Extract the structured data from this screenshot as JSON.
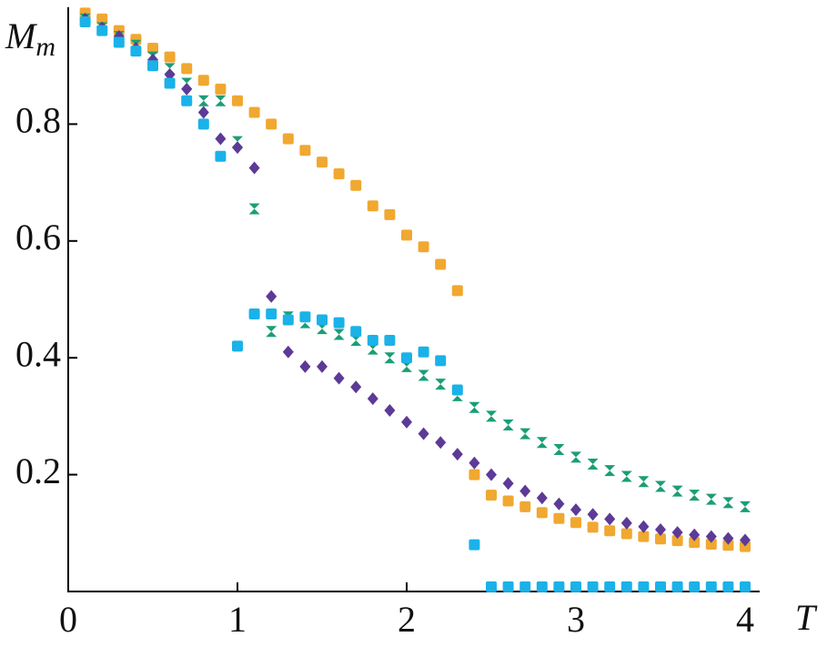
{
  "chart_data": {
    "type": "scatter",
    "xlabel": "T",
    "ylabel": {
      "main": "M",
      "sub": "m"
    },
    "x": [
      0.1,
      0.2,
      0.3,
      0.4,
      0.5,
      0.6,
      0.7,
      0.8,
      0.9,
      1.0,
      1.1,
      1.2,
      1.3,
      1.4,
      1.5,
      1.6,
      1.7,
      1.8,
      1.9,
      2.0,
      2.1,
      2.2,
      2.3,
      2.4,
      2.5,
      2.6,
      2.7,
      2.8,
      2.9,
      3.0,
      3.1,
      3.2,
      3.3,
      3.4,
      3.5,
      3.6,
      3.7,
      3.8,
      3.9,
      4.0
    ],
    "series": [
      {
        "color": "#f0a830",
        "marker": "square",
        "values": [
          0.99,
          0.98,
          0.96,
          0.945,
          0.93,
          0.915,
          0.895,
          0.875,
          0.86,
          0.84,
          0.82,
          0.8,
          0.775,
          0.755,
          0.735,
          0.715,
          0.695,
          0.66,
          0.645,
          0.61,
          0.59,
          0.56,
          0.515,
          0.2,
          0.165,
          0.155,
          0.145,
          0.135,
          0.125,
          0.118,
          0.11,
          0.104,
          0.099,
          0.094,
          0.09,
          0.087,
          0.084,
          0.081,
          0.079,
          0.077
        ]
      },
      {
        "color": "#1a9e77",
        "marker": "cross",
        "values": [
          0.98,
          0.965,
          0.95,
          0.935,
          0.915,
          0.895,
          0.87,
          0.84,
          0.84,
          0.77,
          0.655,
          0.445,
          0.47,
          0.46,
          0.45,
          0.44,
          0.43,
          0.415,
          0.4,
          0.385,
          0.37,
          0.355,
          0.335,
          0.315,
          0.3,
          0.285,
          0.27,
          0.255,
          0.243,
          0.23,
          0.218,
          0.207,
          0.197,
          0.188,
          0.18,
          0.172,
          0.165,
          0.158,
          0.152,
          0.145
        ]
      },
      {
        "color": "#5c3a96",
        "marker": "diamond",
        "values": [
          0.98,
          0.965,
          0.95,
          0.93,
          0.91,
          0.885,
          0.86,
          0.82,
          0.775,
          0.76,
          0.725,
          0.505,
          0.41,
          0.385,
          0.385,
          0.365,
          0.35,
          0.33,
          0.31,
          0.29,
          0.27,
          0.255,
          0.235,
          0.22,
          0.2,
          0.185,
          0.172,
          0.16,
          0.15,
          0.14,
          0.132,
          0.124,
          0.117,
          0.111,
          0.106,
          0.101,
          0.097,
          0.094,
          0.091,
          0.088
        ]
      },
      {
        "color": "#1ab2e8",
        "marker": "square",
        "values": [
          0.975,
          0.96,
          0.94,
          0.925,
          0.9,
          0.87,
          0.84,
          0.8,
          0.745,
          0.42,
          0.475,
          0.475,
          0.465,
          0.47,
          0.465,
          0.46,
          0.445,
          0.43,
          0.43,
          0.4,
          0.41,
          0.395,
          0.345,
          0.08,
          0.008,
          0.008,
          0.008,
          0.008,
          0.008,
          0.008,
          0.008,
          0.008,
          0.008,
          0.008,
          0.008,
          0.008,
          0.008,
          0.008,
          0.008,
          0.008
        ]
      }
    ],
    "xlim": [
      0,
      4.1
    ],
    "ylim": [
      0,
      1
    ],
    "xticks": [
      0,
      1,
      2,
      3,
      4
    ],
    "yticks": [
      0.2,
      0.4,
      0.6,
      0.8
    ]
  }
}
